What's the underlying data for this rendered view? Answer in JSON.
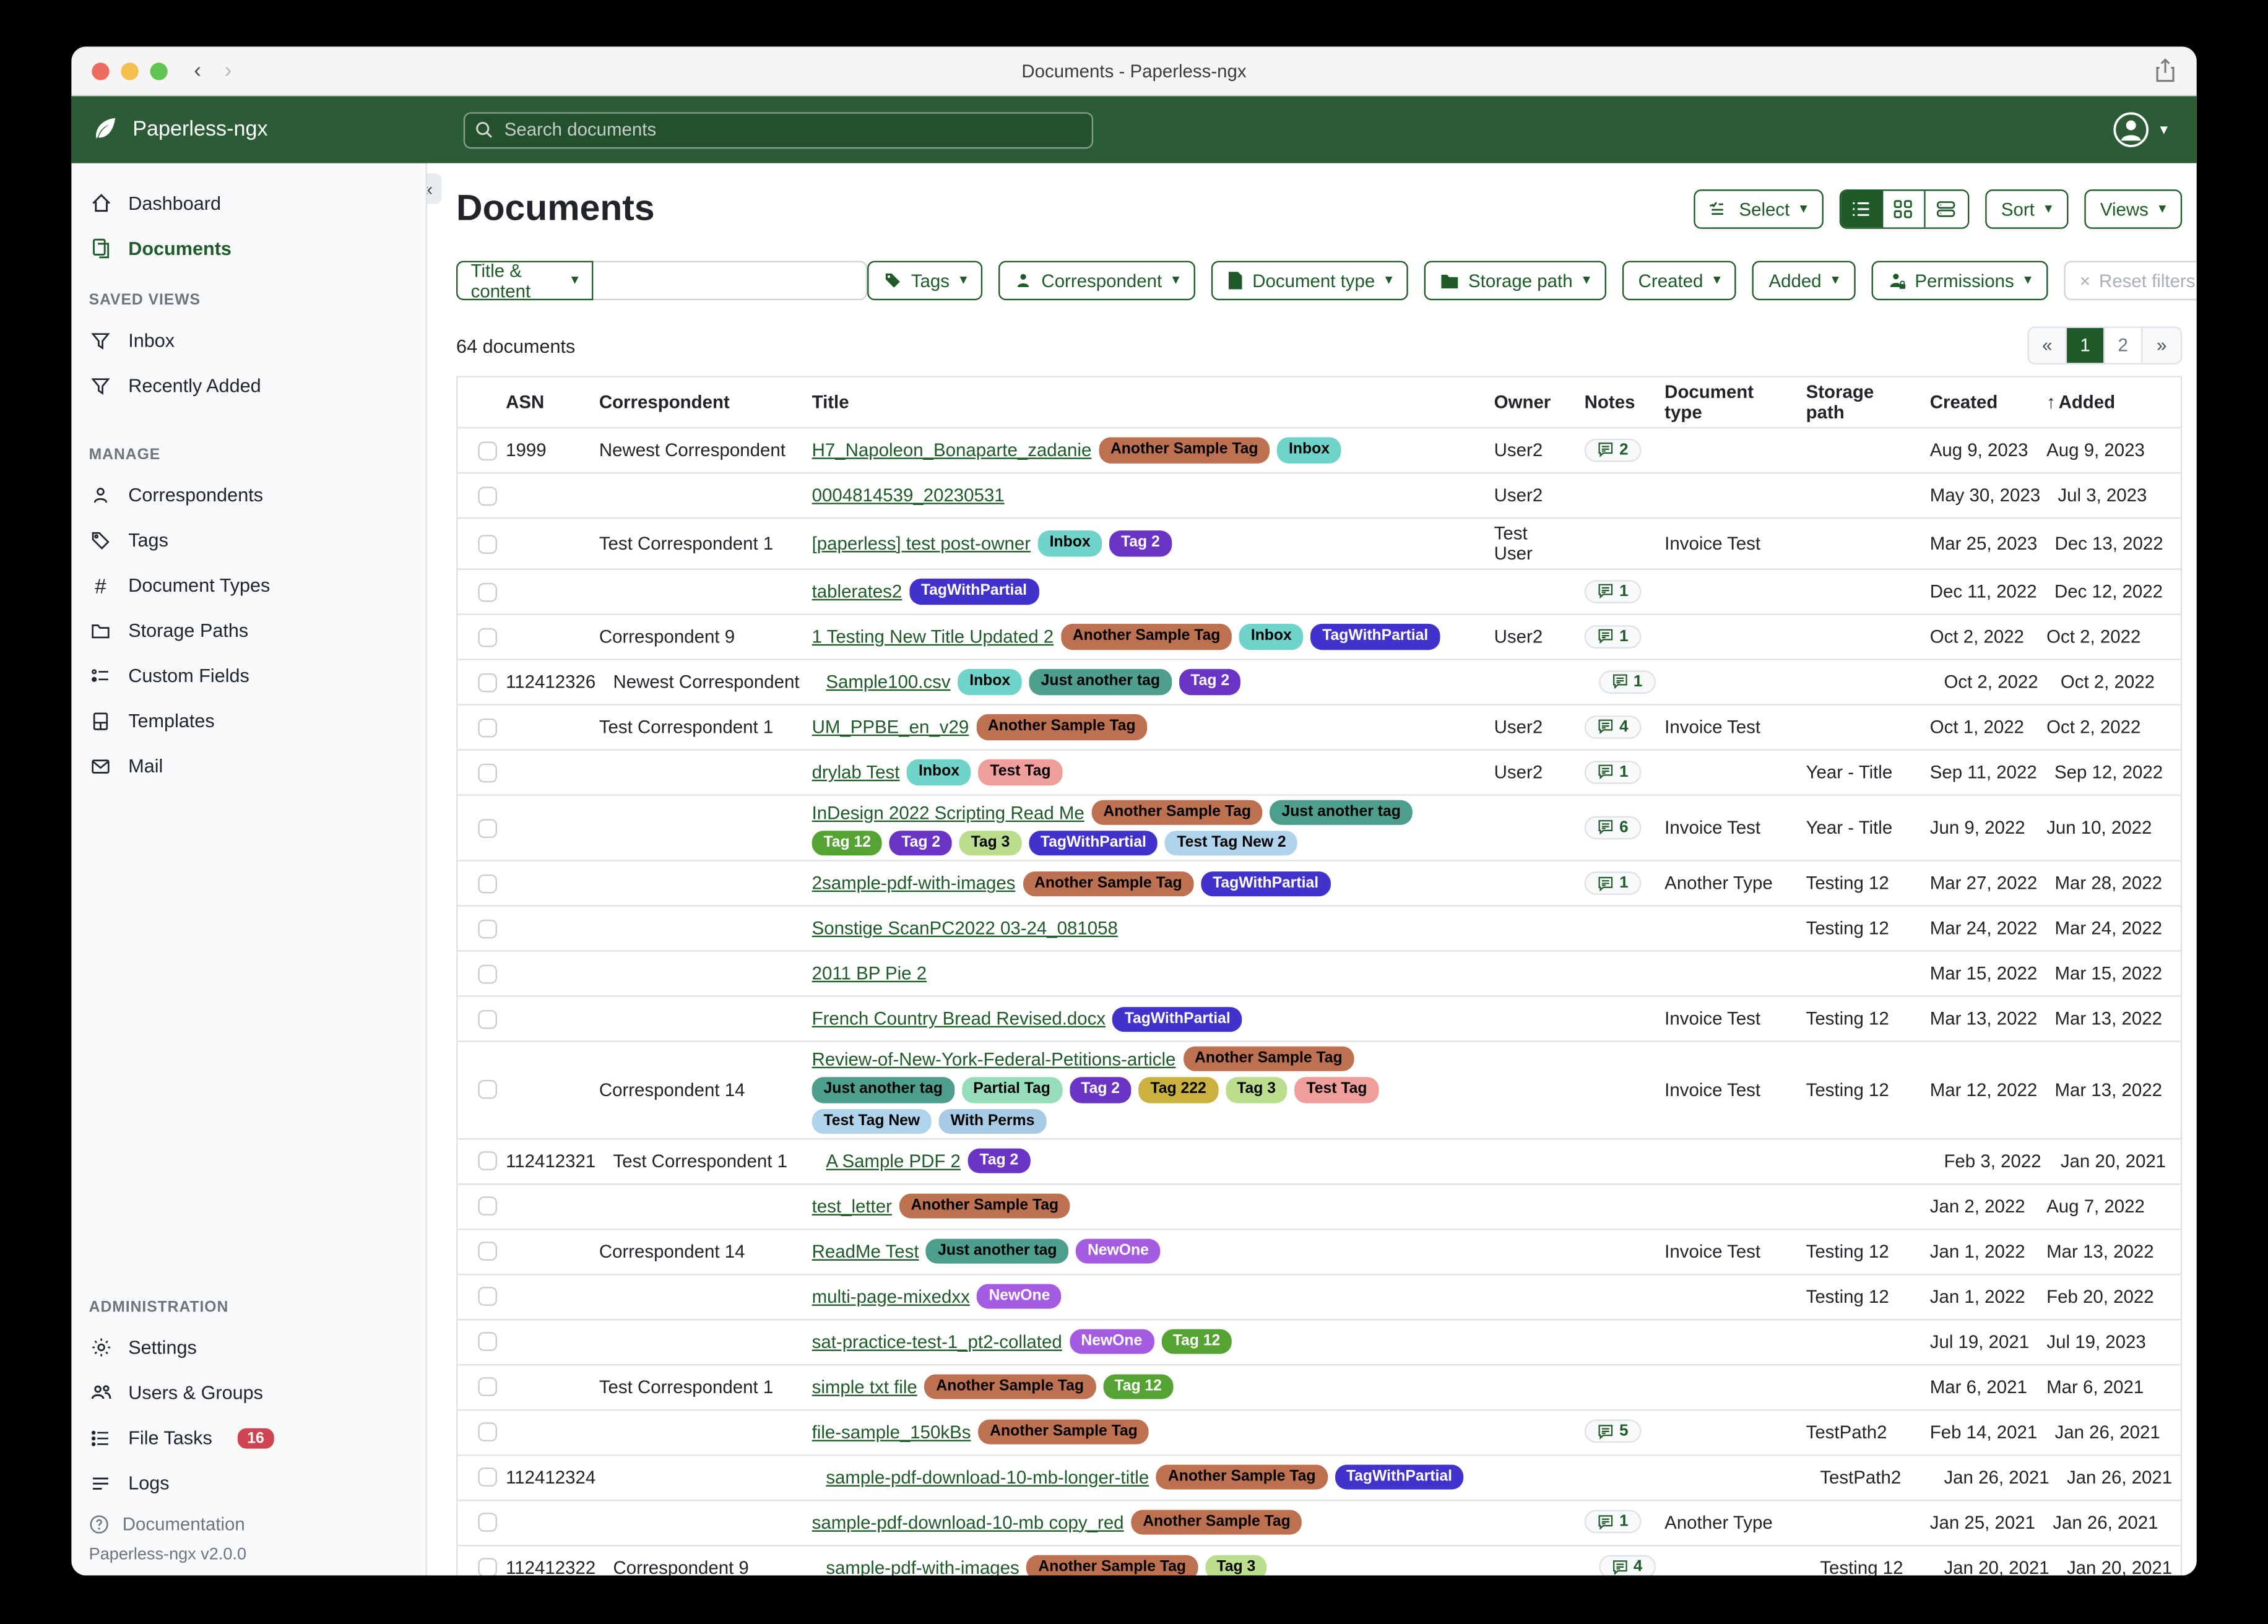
{
  "theme": {
    "navbar_green": "#2b5c35",
    "primary_green": "#1e5b29",
    "badge_red": "#ce4453"
  },
  "window": {
    "title": "Documents - Paperless-ngx"
  },
  "appbar": {
    "brand": "Paperless-ngx",
    "search_placeholder": "Search documents"
  },
  "sidebar": {
    "sections": [
      {
        "label": "",
        "items": [
          {
            "label": "Dashboard",
            "icon": "home-icon",
            "active": false
          },
          {
            "label": "Documents",
            "icon": "documents-icon",
            "active": true
          }
        ]
      },
      {
        "label": "SAVED VIEWS",
        "items": [
          {
            "label": "Inbox",
            "icon": "filter-icon",
            "active": false
          },
          {
            "label": "Recently Added",
            "icon": "filter-icon",
            "active": false
          }
        ]
      },
      {
        "label": "MANAGE",
        "items": [
          {
            "label": "Correspondents",
            "icon": "person-icon",
            "active": false
          },
          {
            "label": "Tags",
            "icon": "tag-icon",
            "active": false
          },
          {
            "label": "Document Types",
            "icon": "hash-icon",
            "active": false
          },
          {
            "label": "Storage Paths",
            "icon": "folder-icon",
            "active": false
          },
          {
            "label": "Custom Fields",
            "icon": "custom-fields-icon",
            "active": false
          },
          {
            "label": "Templates",
            "icon": "template-icon",
            "active": false
          },
          {
            "label": "Mail",
            "icon": "mail-icon",
            "active": false
          }
        ]
      },
      {
        "label": "ADMINISTRATION",
        "items": [
          {
            "label": "Settings",
            "icon": "gear-icon",
            "active": false
          },
          {
            "label": "Users & Groups",
            "icon": "users-icon",
            "active": false
          },
          {
            "label": "File Tasks",
            "icon": "tasks-icon",
            "active": false,
            "badge": "16"
          },
          {
            "label": "Logs",
            "icon": "logs-icon",
            "active": false
          }
        ]
      }
    ],
    "documentation": "Documentation",
    "version": "Paperless-ngx v2.0.0",
    "collapse_glyph": "«"
  },
  "toolbar": {
    "title": "Documents",
    "select_label": "Select",
    "sort_label": "Sort",
    "views_label": "Views"
  },
  "filters": {
    "title_content_label": "Title & content",
    "search_value": "",
    "tags_label": "Tags",
    "correspondent_label": "Correspondent",
    "document_type_label": "Document type",
    "storage_path_label": "Storage path",
    "created_label": "Created",
    "added_label": "Added",
    "permissions_label": "Permissions",
    "reset_label": "Reset filters",
    "reset_x": "×"
  },
  "status": {
    "count_label": "64 documents"
  },
  "pagination": {
    "prev": "«",
    "pages": [
      "1",
      "2"
    ],
    "active": "1",
    "next": "»"
  },
  "table": {
    "sort_arrow": "↑",
    "headers": {
      "asn": "ASN",
      "correspondent": "Correspondent",
      "title": "Title",
      "owner": "Owner",
      "notes": "Notes",
      "document_type": "Document type",
      "storage_path": "Storage path",
      "created": "Created",
      "added": "Added"
    },
    "rows": [
      {
        "asn": "1999",
        "correspondent": "Newest Correspondent",
        "title": "H7_Napoleon_Bonaparte_zadanie",
        "tags": [
          "Another Sample Tag",
          "Inbox"
        ],
        "owner": "User2",
        "notes": "2",
        "document_type": "",
        "storage_path": "",
        "created": "Aug 9, 2023",
        "added": "Aug 9, 2023"
      },
      {
        "asn": "",
        "correspondent": "",
        "title": "0004814539_20230531",
        "tags": [],
        "owner": "User2",
        "notes": "",
        "document_type": "",
        "storage_path": "",
        "created": "May 30, 2023",
        "added": "Jul 3, 2023"
      },
      {
        "asn": "",
        "correspondent": "Test Correspondent 1",
        "title": "[paperless] test post-owner",
        "tags": [
          "Inbox",
          "Tag 2"
        ],
        "owner": "Test User",
        "notes": "",
        "document_type": "Invoice Test",
        "storage_path": "",
        "created": "Mar 25, 2023",
        "added": "Dec 13, 2022"
      },
      {
        "asn": "",
        "correspondent": "",
        "title": "tablerates2",
        "tags": [
          "TagWithPartial"
        ],
        "owner": "",
        "notes": "1",
        "document_type": "",
        "storage_path": "",
        "created": "Dec 11, 2022",
        "added": "Dec 12, 2022"
      },
      {
        "asn": "",
        "correspondent": "Correspondent 9",
        "title": "1 Testing New Title Updated 2",
        "tags": [
          "Another Sample Tag",
          "Inbox",
          "TagWithPartial"
        ],
        "owner": "User2",
        "notes": "1",
        "document_type": "",
        "storage_path": "",
        "created": "Oct 2, 2022",
        "added": "Oct 2, 2022"
      },
      {
        "asn": "112412326",
        "correspondent": "Newest Correspondent",
        "title": "Sample100.csv",
        "tags": [
          "Inbox",
          "Just another tag",
          "Tag 2"
        ],
        "owner": "",
        "notes": "1",
        "document_type": "",
        "storage_path": "",
        "created": "Oct 2, 2022",
        "added": "Oct 2, 2022"
      },
      {
        "asn": "",
        "correspondent": "Test Correspondent 1",
        "title": "UM_PPBE_en_v29",
        "tags": [
          "Another Sample Tag"
        ],
        "owner": "User2",
        "notes": "4",
        "document_type": "Invoice Test",
        "storage_path": "",
        "created": "Oct 1, 2022",
        "added": "Oct 2, 2022"
      },
      {
        "asn": "",
        "correspondent": "",
        "title": "drylab Test",
        "tags": [
          "Inbox",
          "Test Tag"
        ],
        "owner": "User2",
        "notes": "1",
        "document_type": "",
        "storage_path": "Year - Title",
        "created": "Sep 11, 2022",
        "added": "Sep 12, 2022"
      },
      {
        "asn": "",
        "correspondent": "",
        "title": "InDesign 2022 Scripting Read Me",
        "tags": [
          "Another Sample Tag",
          "Just another tag",
          "Tag 12",
          "Tag 2",
          "Tag 3",
          "TagWithPartial",
          "Test Tag New 2"
        ],
        "owner": "",
        "notes": "6",
        "document_type": "Invoice Test",
        "storage_path": "Year - Title",
        "created": "Jun 9, 2022",
        "added": "Jun 10, 2022"
      },
      {
        "asn": "",
        "correspondent": "",
        "title": "2sample-pdf-with-images",
        "tags": [
          "Another Sample Tag",
          "TagWithPartial"
        ],
        "owner": "",
        "notes": "1",
        "document_type": "Another Type",
        "storage_path": "Testing 12",
        "created": "Mar 27, 2022",
        "added": "Mar 28, 2022"
      },
      {
        "asn": "",
        "correspondent": "",
        "title": "Sonstige ScanPC2022 03-24_081058",
        "tags": [],
        "owner": "",
        "notes": "",
        "document_type": "",
        "storage_path": "Testing 12",
        "created": "Mar 24, 2022",
        "added": "Mar 24, 2022"
      },
      {
        "asn": "",
        "correspondent": "",
        "title": "2011 BP Pie 2",
        "tags": [],
        "owner": "",
        "notes": "",
        "document_type": "",
        "storage_path": "",
        "created": "Mar 15, 2022",
        "added": "Mar 15, 2022"
      },
      {
        "asn": "",
        "correspondent": "",
        "title": "French Country Bread Revised.docx",
        "tags": [
          "TagWithPartial"
        ],
        "owner": "",
        "notes": "",
        "document_type": "Invoice Test",
        "storage_path": "Testing 12",
        "created": "Mar 13, 2022",
        "added": "Mar 13, 2022"
      },
      {
        "asn": "",
        "correspondent": "Correspondent 14",
        "title": "Review-of-New-York-Federal-Petitions-article",
        "tags": [
          "Another Sample Tag",
          "Just another tag",
          "Partial Tag",
          "Tag 2",
          "Tag 222",
          "Tag 3",
          "Test Tag",
          "Test Tag New",
          "With Perms"
        ],
        "owner": "",
        "notes": "",
        "document_type": "Invoice Test",
        "storage_path": "Testing 12",
        "created": "Mar 12, 2022",
        "added": "Mar 13, 2022"
      },
      {
        "asn": "112412321",
        "correspondent": "Test Correspondent 1",
        "title": "A Sample PDF 2",
        "tags": [
          "Tag 2"
        ],
        "owner": "",
        "notes": "",
        "document_type": "",
        "storage_path": "",
        "created": "Feb 3, 2022",
        "added": "Jan 20, 2021"
      },
      {
        "asn": "",
        "correspondent": "",
        "title": "test_letter",
        "tags": [
          "Another Sample Tag"
        ],
        "owner": "",
        "notes": "",
        "document_type": "",
        "storage_path": "",
        "created": "Jan 2, 2022",
        "added": "Aug 7, 2022"
      },
      {
        "asn": "",
        "correspondent": "Correspondent 14",
        "title": "ReadMe Test",
        "tags": [
          "Just another tag",
          "NewOne"
        ],
        "owner": "",
        "notes": "",
        "document_type": "Invoice Test",
        "storage_path": "Testing 12",
        "created": "Jan 1, 2022",
        "added": "Mar 13, 2022"
      },
      {
        "asn": "",
        "correspondent": "",
        "title": "multi-page-mixedxx",
        "tags": [
          "NewOne"
        ],
        "owner": "",
        "notes": "",
        "document_type": "",
        "storage_path": "Testing 12",
        "created": "Jan 1, 2022",
        "added": "Feb 20, 2022"
      },
      {
        "asn": "",
        "correspondent": "",
        "title": "sat-practice-test-1_pt2-collated",
        "tags": [
          "NewOne",
          "Tag 12"
        ],
        "owner": "",
        "notes": "",
        "document_type": "",
        "storage_path": "",
        "created": "Jul 19, 2021",
        "added": "Jul 19, 2023"
      },
      {
        "asn": "",
        "correspondent": "Test Correspondent 1",
        "title": "simple txt file",
        "tags": [
          "Another Sample Tag",
          "Tag 12"
        ],
        "owner": "",
        "notes": "",
        "document_type": "",
        "storage_path": "",
        "created": "Mar 6, 2021",
        "added": "Mar 6, 2021"
      },
      {
        "asn": "",
        "correspondent": "",
        "title": "file-sample_150kBs",
        "tags": [
          "Another Sample Tag"
        ],
        "owner": "",
        "notes": "5",
        "document_type": "",
        "storage_path": "TestPath2",
        "created": "Feb 14, 2021",
        "added": "Jan 26, 2021"
      },
      {
        "asn": "112412324",
        "correspondent": "",
        "title": "sample-pdf-download-10-mb-longer-title",
        "tags": [
          "Another Sample Tag",
          "TagWithPartial"
        ],
        "owner": "",
        "notes": "",
        "document_type": "",
        "storage_path": "TestPath2",
        "created": "Jan 26, 2021",
        "added": "Jan 26, 2021"
      },
      {
        "asn": "",
        "correspondent": "",
        "title": "sample-pdf-download-10-mb copy_red",
        "tags": [
          "Another Sample Tag"
        ],
        "owner": "",
        "notes": "1",
        "document_type": "Another Type",
        "storage_path": "",
        "created": "Jan 25, 2021",
        "added": "Jan 26, 2021"
      },
      {
        "asn": "112412322",
        "correspondent": "Correspondent 9",
        "title": "sample-pdf-with-images",
        "tags": [
          "Another Sample Tag",
          "Tag 3"
        ],
        "owner": "",
        "notes": "4",
        "document_type": "",
        "storage_path": "Testing 12",
        "created": "Jan 20, 2021",
        "added": "Jan 20, 2021"
      }
    ]
  },
  "tag_colors": {
    "Another Sample Tag": {
      "bg": "#bd7150",
      "fg": "#000000"
    },
    "Inbox": {
      "bg": "#6fd3c9",
      "fg": "#000000"
    },
    "Tag 2": {
      "bg": "#6a35c5",
      "fg": "#ffffff"
    },
    "TagWithPartial": {
      "bg": "#4032cb",
      "fg": "#ffffff"
    },
    "Just another tag": {
      "bg": "#4d9e8d",
      "fg": "#000000"
    },
    "Tag 12": {
      "bg": "#55a433",
      "fg": "#ffffff"
    },
    "Tag 3": {
      "bg": "#bade8e",
      "fg": "#000000"
    },
    "Test Tag": {
      "bg": "#f09e9b",
      "fg": "#000000"
    },
    "Test Tag New 2": {
      "bg": "#aed3ea",
      "fg": "#000000"
    },
    "Partial Tag": {
      "bg": "#96debb",
      "fg": "#000000"
    },
    "Tag 222": {
      "bg": "#cbb23e",
      "fg": "#000000"
    },
    "Test Tag New": {
      "bg": "#aed3ea",
      "fg": "#000000"
    },
    "With Perms": {
      "bg": "#a7cbe5",
      "fg": "#000000"
    },
    "NewOne": {
      "bg": "#a55ce1",
      "fg": "#ffffff"
    }
  }
}
